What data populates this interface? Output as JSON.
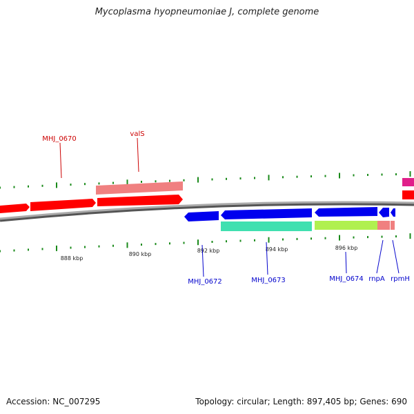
{
  "title": "Mycoplasma hyopneumoniae J, complete genome",
  "footer": {
    "accession": "Accession: NC_007295",
    "summary": "Topology: circular; Length: 897,405 bp; Genes: 690"
  },
  "colors": {
    "forward_gene": "#ff0000",
    "forward_rna": "#f08080",
    "reverse_gene": "#0000ff",
    "reverse_teal": "#40e0b0",
    "reverse_green": "#b0f050",
    "magenta": "#e0208a",
    "backbone": "#888888",
    "tick": "#1a8a1a",
    "fwd_label": "#cc0000",
    "rev_label": "#0000cc"
  },
  "scale_labels": [
    {
      "text": "888 kbp"
    },
    {
      "text": "890 kbp"
    },
    {
      "text": "892 kbp"
    },
    {
      "text": "894 kbp"
    },
    {
      "text": "896 kbp"
    }
  ],
  "gene_labels": {
    "forward": [
      "MHJ_0670",
      "valS"
    ],
    "reverse": [
      "MHJ_0672",
      "MHJ_0673",
      "MHJ_0674",
      "rnpA",
      "rpmH"
    ]
  }
}
